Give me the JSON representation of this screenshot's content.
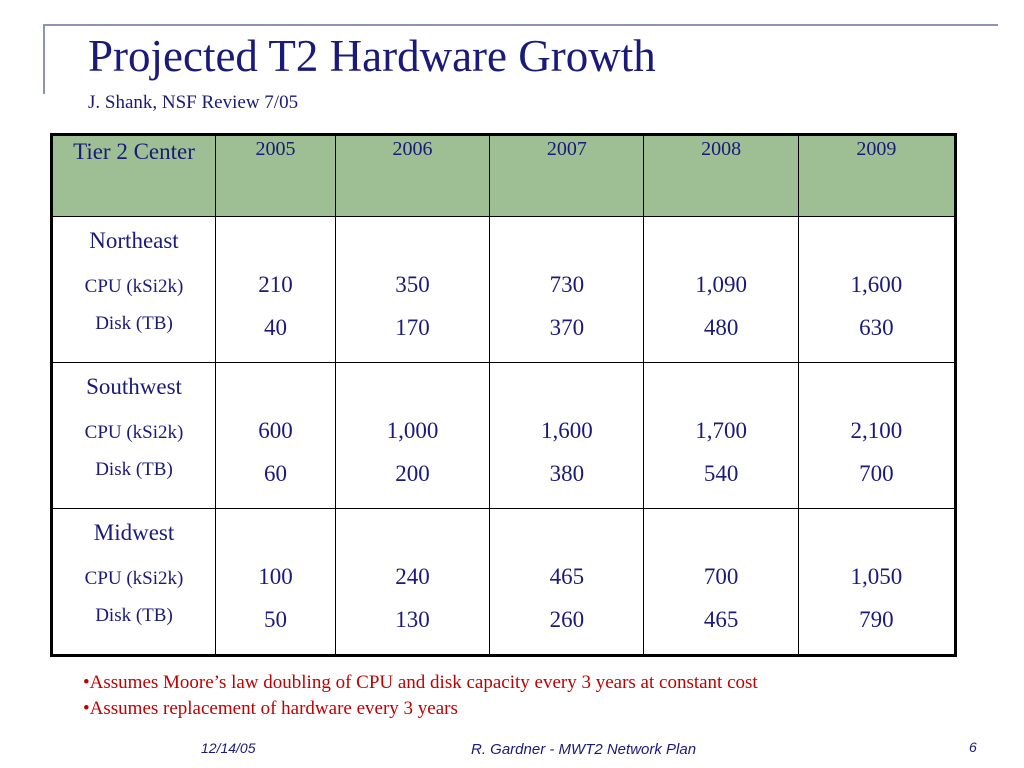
{
  "slide": {
    "title": "Projected T2 Hardware Growth",
    "subtitle": "J. Shank, NSF Review 7/05"
  },
  "table": {
    "header_first": "Tier 2 Center",
    "years": [
      "2005",
      "2006",
      "2007",
      "2008",
      "2009"
    ],
    "cpu_label": "CPU (kSi2k)",
    "disk_label": "Disk (TB)",
    "rows": [
      {
        "region": "Northeast",
        "cpu": [
          "210",
          "350",
          "730",
          "1,090",
          "1,600"
        ],
        "disk": [
          "40",
          "170",
          "370",
          "480",
          "630"
        ]
      },
      {
        "region": "Southwest",
        "cpu": [
          "600",
          "1,000",
          "1,600",
          "1,700",
          "2,100"
        ],
        "disk": [
          "60",
          "200",
          "380",
          "540",
          "700"
        ]
      },
      {
        "region": "Midwest",
        "cpu": [
          "100",
          "240",
          "465",
          "700",
          "1,050"
        ],
        "disk": [
          "50",
          "130",
          "260",
          "465",
          "790"
        ]
      }
    ]
  },
  "notes": [
    "•Assumes Moore’s law doubling of CPU and disk capacity every 3 years at constant cost",
    "•Assumes replacement of hardware every 3 years"
  ],
  "footer": {
    "date": "12/14/05",
    "center": "R. Gardner - MWT2 Network Plan",
    "page": "6"
  },
  "colors": {
    "title": "#1a1a7a",
    "header_bg": "#9dbf93",
    "notes": "#c00000"
  }
}
